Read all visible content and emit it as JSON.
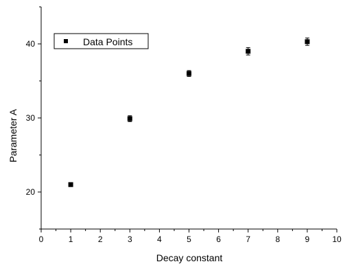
{
  "chart_data": {
    "type": "scatter",
    "xlabel": "Decay constant",
    "ylabel": "Parameter A",
    "xlim": [
      0,
      10
    ],
    "ylim": [
      15,
      45
    ],
    "xticks": [
      "0",
      "1",
      "2",
      "3",
      "4",
      "5",
      "6",
      "7",
      "8",
      "9",
      "10"
    ],
    "yticks": [
      "20",
      "30",
      "40"
    ],
    "series": [
      {
        "name": "Data Points",
        "x": [
          1,
          3,
          5,
          7,
          9
        ],
        "y": [
          21.0,
          29.9,
          36.0,
          39.0,
          40.3
        ],
        "error": [
          0.2,
          0.4,
          0.4,
          0.5,
          0.5
        ]
      }
    ],
    "legend_position": "top-left",
    "grid": false,
    "marker_color": "#000000"
  }
}
